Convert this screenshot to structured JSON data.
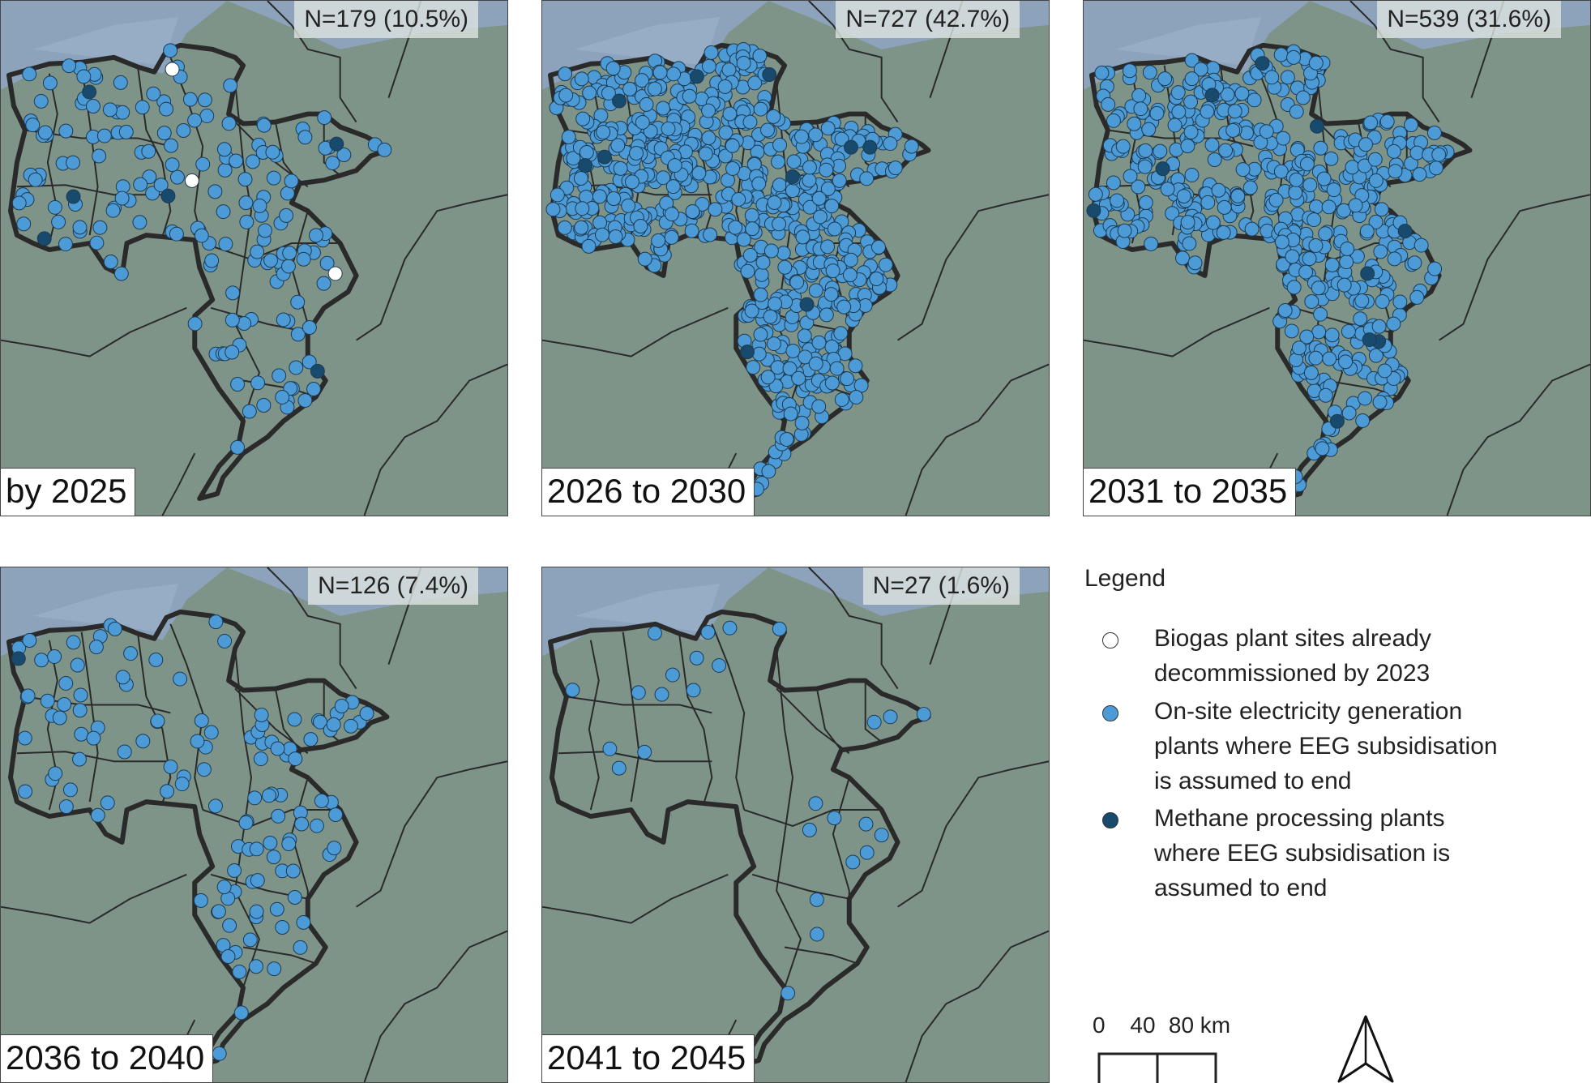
{
  "panels": [
    {
      "period": "by 2025",
      "count": "N=179 (10.5%)"
    },
    {
      "period": "2026 to 2030",
      "count": "N=727 (42.7%)"
    },
    {
      "period": "2031 to 2035",
      "count": "N=539 (31.6%)"
    },
    {
      "period": "2036 to 2040",
      "count": "N=126 (7.4%)"
    },
    {
      "period": "2041 to 2045",
      "count": "N=27 (1.6%)"
    }
  ],
  "legend": {
    "title": "Legend",
    "items": [
      {
        "lines": [
          "Biogas plant sites already",
          "decommissioned by 2023"
        ],
        "color": "#ffffff"
      },
      {
        "lines": [
          "On-site electricity generation",
          "plants where EEG subsidisation",
          "is assumed to end"
        ],
        "color": "#4c9bd6"
      },
      {
        "lines": [
          "Methane processing plants",
          "where EEG subsidisation is",
          "assumed to end"
        ],
        "color": "#184a6e"
      }
    ]
  },
  "scale": {
    "labels": [
      "0",
      "40",
      "80 km"
    ]
  },
  "colors": {
    "sea": "#8fa6c4",
    "land": "#7f9488",
    "border": "#2a2a2a",
    "electricity": "#4c9bd6",
    "methane": "#184a6e",
    "decommissioned": "#ffffff"
  },
  "icons": {
    "north": "north-arrow-icon"
  }
}
